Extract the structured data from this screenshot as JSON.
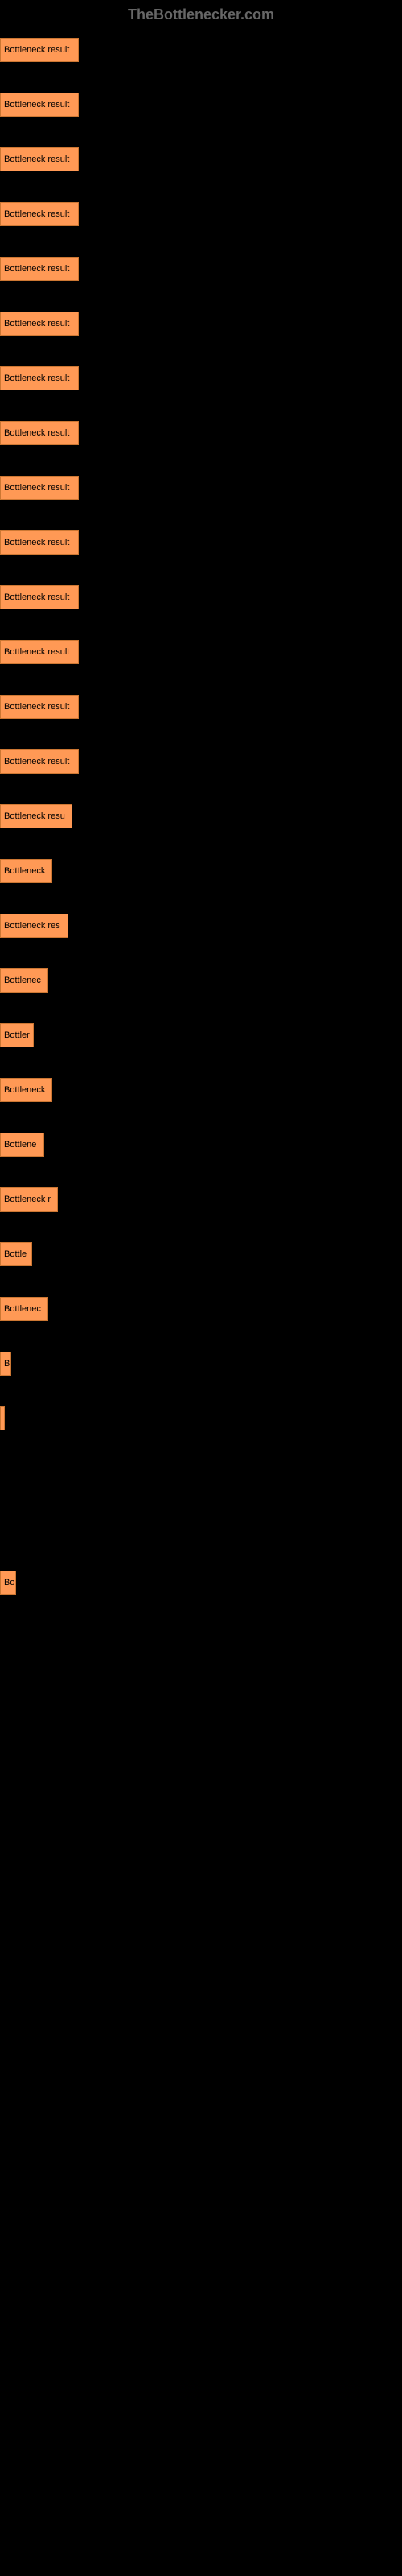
{
  "header": {
    "title": "TheBottlenecker.com"
  },
  "chart": {
    "type": "bar",
    "bar_color": "#ff9955",
    "bar_border_color": "#cc7733",
    "text_color": "#000000",
    "background_color": "#000000",
    "bars": [
      {
        "label": "Bottleneck result",
        "width": 98
      },
      {
        "label": "Bottleneck result",
        "width": 98
      },
      {
        "label": "Bottleneck result",
        "width": 98
      },
      {
        "label": "Bottleneck result",
        "width": 98
      },
      {
        "label": "Bottleneck result",
        "width": 98
      },
      {
        "label": "Bottleneck result",
        "width": 98
      },
      {
        "label": "Bottleneck result",
        "width": 98
      },
      {
        "label": "Bottleneck result",
        "width": 98
      },
      {
        "label": "Bottleneck result",
        "width": 98
      },
      {
        "label": "Bottleneck result",
        "width": 98
      },
      {
        "label": "Bottleneck result",
        "width": 98
      },
      {
        "label": "Bottleneck result",
        "width": 98
      },
      {
        "label": "Bottleneck result",
        "width": 98
      },
      {
        "label": "Bottleneck result",
        "width": 98
      },
      {
        "label": "Bottleneck resu",
        "width": 90
      },
      {
        "label": "Bottleneck",
        "width": 65
      },
      {
        "label": "Bottleneck res",
        "width": 85
      },
      {
        "label": "Bottlenec",
        "width": 60
      },
      {
        "label": "Bottler",
        "width": 42
      },
      {
        "label": "Bottleneck",
        "width": 65
      },
      {
        "label": "Bottlene",
        "width": 55
      },
      {
        "label": "Bottleneck r",
        "width": 72
      },
      {
        "label": "Bottle",
        "width": 40
      },
      {
        "label": "Bottlenec",
        "width": 60
      },
      {
        "label": "B",
        "width": 14
      },
      {
        "label": "",
        "width": 4
      },
      {
        "label": "",
        "width": 0
      },
      {
        "label": "",
        "width": 0
      },
      {
        "label": "Bo",
        "width": 20
      },
      {
        "label": "",
        "width": 0
      },
      {
        "label": "",
        "width": 0
      },
      {
        "label": "",
        "width": 0
      },
      {
        "label": "",
        "width": 0
      },
      {
        "label": "",
        "width": 0
      },
      {
        "label": "",
        "width": 0
      },
      {
        "label": "",
        "width": 0
      },
      {
        "label": "",
        "width": 0
      },
      {
        "label": "",
        "width": 0
      },
      {
        "label": "",
        "width": 0
      },
      {
        "label": "",
        "width": 0
      },
      {
        "label": "",
        "width": 0
      },
      {
        "label": "",
        "width": 0
      },
      {
        "label": "",
        "width": 0
      },
      {
        "label": "",
        "width": 0
      },
      {
        "label": "",
        "width": 0
      },
      {
        "label": "",
        "width": 0
      }
    ]
  }
}
